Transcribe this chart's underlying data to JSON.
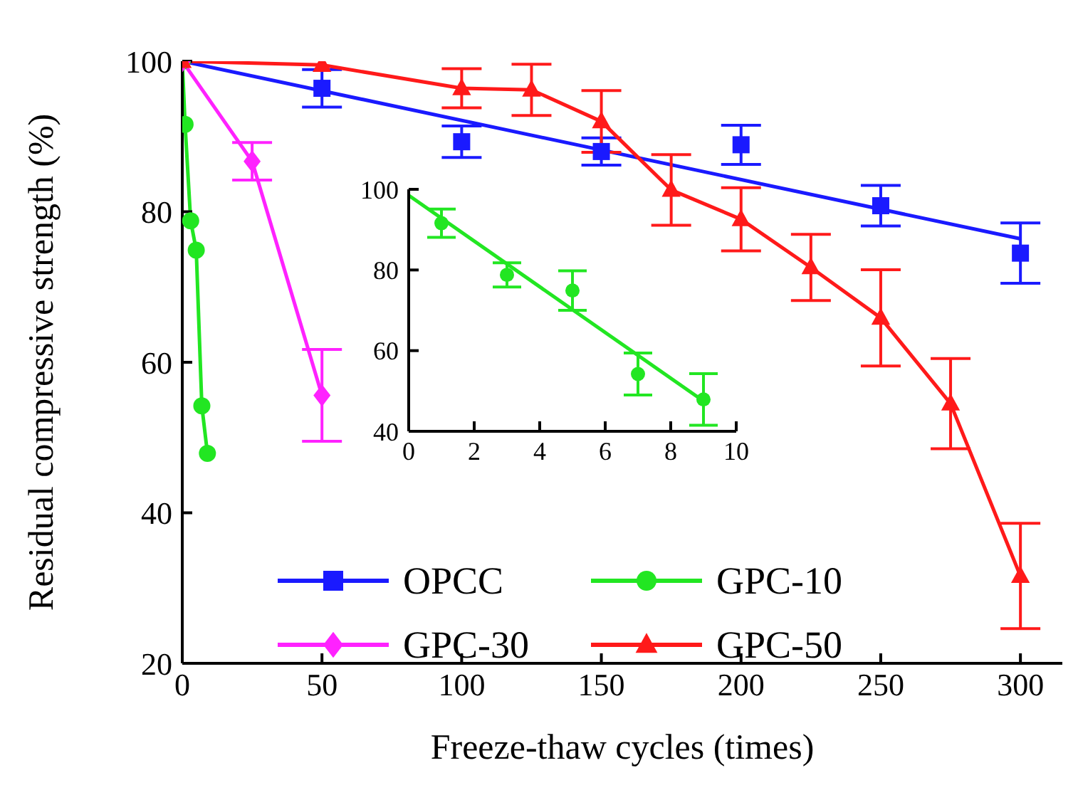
{
  "chart_data": [
    {
      "type": "line",
      "xlabel": "Freeze-thaw cycles (times)",
      "ylabel": "Residual compressive strength (%)",
      "xlim": [
        0,
        315
      ],
      "ylim": [
        20,
        100
      ],
      "xticks": [
        0,
        50,
        100,
        150,
        200,
        250,
        300
      ],
      "yticks": [
        20,
        40,
        60,
        80,
        100
      ],
      "legend": "bottom",
      "series": [
        {
          "name": "OPCC",
          "type": "scatter",
          "color": "#1a1aff",
          "marker": "square",
          "x": [
            50,
            100,
            150,
            200,
            250,
            300
          ],
          "values": [
            96.4,
            89.3,
            88,
            88.9,
            80.8,
            74.5
          ],
          "errors": [
            2.5,
            2.1,
            1.8,
            2.6,
            2.7,
            4
          ]
        },
        {
          "color": "#1a1aff",
          "marker": "none",
          "x": [
            0,
            300
          ],
          "values": [
            100,
            76.4
          ]
        },
        {
          "name": "GPC-10",
          "color": "#22e622",
          "marker": "circle",
          "x": [
            0,
            1,
            3,
            5,
            7,
            9
          ],
          "values": [
            100,
            91.6,
            78.8,
            74.9,
            54.2,
            47.9
          ]
        },
        {
          "name": "GPC-30",
          "color": "#ff22ff",
          "marker": "diamond",
          "x": [
            0,
            25,
            50
          ],
          "values": [
            100,
            86.7,
            55.6
          ],
          "errors": [
            null,
            2.5,
            6.1
          ]
        },
        {
          "name": "GPC-50",
          "color": "#ff1a1a",
          "marker": "triangle",
          "x": [
            0,
            50,
            100,
            125,
            150,
            175,
            200,
            225,
            250,
            275,
            300
          ],
          "values": [
            100,
            99.5,
            96.4,
            96.2,
            92,
            82.9,
            79,
            72.6,
            65.9,
            54.5,
            31.6
          ],
          "errors": [
            null,
            null,
            2.6,
            3.4,
            4.1,
            4.7,
            4.2,
            4.4,
            6.4,
            6,
            7
          ]
        }
      ]
    },
    {
      "type": "scatter",
      "xlim": [
        0,
        10
      ],
      "ylim": [
        40,
        100
      ],
      "xticks": [
        0,
        2,
        4,
        6,
        8,
        10
      ],
      "yticks": [
        40,
        60,
        80,
        100
      ],
      "series": [
        {
          "color": "#22e622",
          "marker": "circle",
          "x": [
            1,
            3,
            5,
            7,
            9
          ],
          "values": [
            91.6,
            78.8,
            74.9,
            54.2,
            47.9
          ],
          "errors": [
            3.5,
            3,
            4.9,
            5.2,
            6.4
          ]
        },
        {
          "type": "line",
          "color": "#22e622",
          "marker": "none",
          "x": [
            0,
            9
          ],
          "values": [
            98.5,
            47.5
          ]
        }
      ]
    }
  ]
}
